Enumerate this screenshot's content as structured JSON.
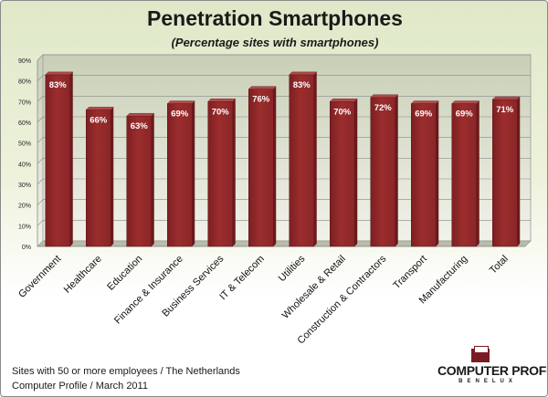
{
  "chart_data": {
    "type": "bar",
    "title": "Penetration Smartphones",
    "subtitle": "(Percentage sites with smartphones)",
    "xlabel": "",
    "ylabel": "",
    "categories": [
      "Government",
      "Healthcare",
      "Education",
      "Finance & Insurance",
      "Business Services",
      "IT & Telecom",
      "Utilities",
      "Wholesale & Retail",
      "Construction & Contractors",
      "Transport",
      "Manufacturing",
      "Total"
    ],
    "values": [
      83,
      66,
      63,
      69,
      70,
      76,
      83,
      70,
      72,
      69,
      69,
      71
    ],
    "value_labels": [
      "83%",
      "66%",
      "63%",
      "69%",
      "70%",
      "76%",
      "83%",
      "70%",
      "72%",
      "69%",
      "69%",
      "71%"
    ],
    "ylim": [
      0,
      90
    ],
    "yticks": [
      "0%",
      "10%",
      "20%",
      "30%",
      "40%",
      "50%",
      "60%",
      "70%",
      "80%",
      "90%"
    ],
    "grid": true,
    "legend": "none",
    "bar_color": "#9b2d2d",
    "plot_background": "#dfe3d0"
  },
  "footer": {
    "line1": "Sites with 50 or more employees / The Netherlands",
    "line2": "Computer Profile / March 2011"
  },
  "logo": {
    "name": "COMPUTER PROFILE",
    "sub": "BENELUX",
    "icon": "logo-icon"
  }
}
